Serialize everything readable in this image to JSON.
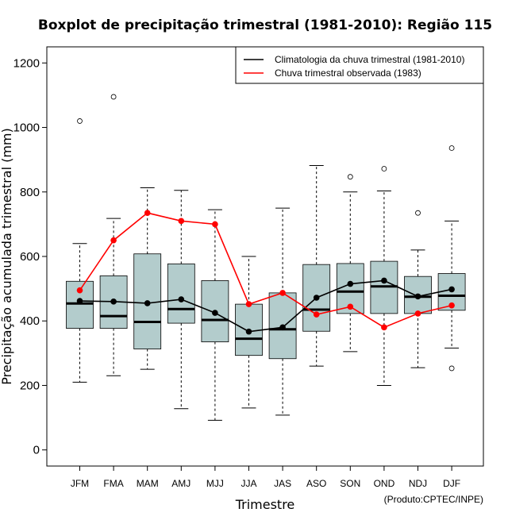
{
  "chart_data": {
    "type": "boxplot",
    "title": "Boxplot de precipitação trimestral (1981-2010): Região 115",
    "xlabel": "Trimestre",
    "ylabel": "Precipitação acumulada trimestral (mm)",
    "ylim": [
      -50,
      1250
    ],
    "yticks": [
      0,
      200,
      400,
      600,
      800,
      1000,
      1200
    ],
    "categories": [
      "JFM",
      "FMA",
      "MAM",
      "AMJ",
      "MJJ",
      "JJA",
      "JAS",
      "ASO",
      "SON",
      "OND",
      "NDJ",
      "DJF"
    ],
    "boxes": [
      {
        "whisker_low": 210,
        "q1": 377,
        "median": 454,
        "q3": 523,
        "whisker_high": 640,
        "outliers": [
          1020
        ]
      },
      {
        "whisker_low": 230,
        "q1": 377,
        "median": 415,
        "q3": 540,
        "whisker_high": 718,
        "outliers": [
          1095
        ]
      },
      {
        "whisker_low": 250,
        "q1": 313,
        "median": 397,
        "q3": 608,
        "whisker_high": 813,
        "outliers": []
      },
      {
        "whisker_low": 128,
        "q1": 393,
        "median": 437,
        "q3": 577,
        "whisker_high": 805,
        "outliers": []
      },
      {
        "whisker_low": 92,
        "q1": 335,
        "median": 403,
        "q3": 525,
        "whisker_high": 745,
        "outliers": []
      },
      {
        "whisker_low": 130,
        "q1": 293,
        "median": 345,
        "q3": 452,
        "whisker_high": 600,
        "outliers": []
      },
      {
        "whisker_low": 108,
        "q1": 283,
        "median": 374,
        "q3": 487,
        "whisker_high": 750,
        "outliers": []
      },
      {
        "whisker_low": 260,
        "q1": 368,
        "median": 435,
        "q3": 575,
        "whisker_high": 882,
        "outliers": []
      },
      {
        "whisker_low": 305,
        "q1": 423,
        "median": 491,
        "q3": 578,
        "whisker_high": 800,
        "outliers": [
          847
        ]
      },
      {
        "whisker_low": 200,
        "q1": 423,
        "median": 507,
        "q3": 585,
        "whisker_high": 803,
        "outliers": [
          872
        ]
      },
      {
        "whisker_low": 255,
        "q1": 423,
        "median": 475,
        "q3": 538,
        "whisker_high": 620,
        "outliers": [
          735
        ]
      },
      {
        "whisker_low": 316,
        "q1": 433,
        "median": 478,
        "q3": 547,
        "whisker_high": 710,
        "outliers": [
          936,
          253
        ]
      }
    ],
    "series": [
      {
        "name": "Climatologia da chuva trimestral (1981-2010)",
        "color": "#000000",
        "values": [
          462,
          460,
          455,
          467,
          425,
          367,
          380,
          472,
          515,
          525,
          476,
          498
        ]
      },
      {
        "name": "Chuva trimestral observada (1983)",
        "color": "#ff0000",
        "values": [
          495,
          650,
          735,
          710,
          700,
          452,
          487,
          420,
          444,
          380,
          423,
          448
        ]
      }
    ],
    "box_fill": "#b3cccc",
    "legend_position": "top-right",
    "credit": "(Produto:CPTEC/INPE)"
  }
}
